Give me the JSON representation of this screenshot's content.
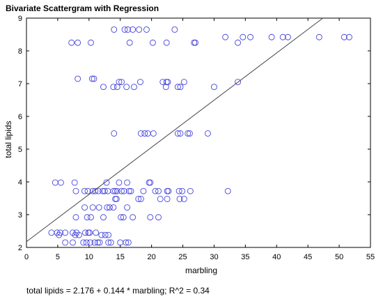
{
  "chart_data": {
    "type": "scatter",
    "title": "Bivariate Scattergram with Regression",
    "xlabel": "marbling",
    "ylabel": "total lipids",
    "xlim": [
      0,
      55
    ],
    "ylim": [
      2,
      9
    ],
    "xticks": [
      0,
      5,
      10,
      15,
      20,
      25,
      30,
      35,
      40,
      45,
      50,
      55
    ],
    "yticks": [
      2,
      3,
      4,
      5,
      6,
      7,
      8,
      9
    ],
    "grid": false,
    "point_color": "#4444dd",
    "line_color": "#444444",
    "regression": {
      "intercept": 2.176,
      "slope": 0.144
    },
    "equation": "total lipids = 2.176 + 0.144 * marbling; R^2 = 0.34",
    "points": [
      [
        14,
        8.65
      ],
      [
        15.7,
        8.65
      ],
      [
        16.2,
        8.65
      ],
      [
        17,
        8.65
      ],
      [
        18,
        8.65
      ],
      [
        19.2,
        8.65
      ],
      [
        23.7,
        8.65
      ],
      [
        7.2,
        8.25
      ],
      [
        8.2,
        8.25
      ],
      [
        10.3,
        8.25
      ],
      [
        16.5,
        8.25
      ],
      [
        20.2,
        8.25
      ],
      [
        22.4,
        8.25
      ],
      [
        26.8,
        8.25
      ],
      [
        27,
        8.25
      ],
      [
        33.8,
        8.25
      ],
      [
        31.8,
        8.42
      ],
      [
        34.6,
        8.42
      ],
      [
        35.8,
        8.42
      ],
      [
        39.2,
        8.42
      ],
      [
        41,
        8.42
      ],
      [
        41.8,
        8.42
      ],
      [
        46.8,
        8.42
      ],
      [
        50.8,
        8.42
      ],
      [
        51.6,
        8.42
      ],
      [
        8.2,
        7.15
      ],
      [
        10.5,
        7.15
      ],
      [
        10.8,
        7.15
      ],
      [
        14.8,
        7.05
      ],
      [
        15.2,
        7.05
      ],
      [
        18.2,
        7.05
      ],
      [
        21.8,
        7.05
      ],
      [
        22.6,
        7.05
      ],
      [
        22.4,
        7.05
      ],
      [
        25.2,
        7.05
      ],
      [
        33.8,
        7.05
      ],
      [
        12.3,
        6.9
      ],
      [
        13.9,
        6.9
      ],
      [
        14.5,
        6.9
      ],
      [
        16,
        6.9
      ],
      [
        17.2,
        6.9
      ],
      [
        24.2,
        6.9
      ],
      [
        24.6,
        6.9
      ],
      [
        22.3,
        6.9
      ],
      [
        30,
        6.9
      ],
      [
        14,
        5.48
      ],
      [
        18.3,
        5.48
      ],
      [
        18.9,
        5.48
      ],
      [
        19.4,
        5.48
      ],
      [
        20.3,
        5.48
      ],
      [
        24.2,
        5.48
      ],
      [
        24.6,
        5.48
      ],
      [
        25.8,
        5.48
      ],
      [
        26.1,
        5.48
      ],
      [
        29,
        5.48
      ],
      [
        4.6,
        3.98
      ],
      [
        5.5,
        3.98
      ],
      [
        7.7,
        3.98
      ],
      [
        12.8,
        3.98
      ],
      [
        14.8,
        3.98
      ],
      [
        16.1,
        3.98
      ],
      [
        19.6,
        3.98
      ],
      [
        19.8,
        3.98
      ],
      [
        9.3,
        3.72
      ],
      [
        9.8,
        3.72
      ],
      [
        10.6,
        3.72
      ],
      [
        11,
        3.72
      ],
      [
        11.5,
        3.72
      ],
      [
        12.2,
        3.72
      ],
      [
        13,
        3.72
      ],
      [
        13.9,
        3.72
      ],
      [
        14.5,
        3.72
      ],
      [
        15.2,
        3.72
      ],
      [
        15.6,
        3.72
      ],
      [
        16.4,
        3.72
      ],
      [
        18.7,
        3.72
      ],
      [
        20.6,
        3.72
      ],
      [
        21.1,
        3.72
      ],
      [
        22.5,
        3.72
      ],
      [
        22.7,
        3.72
      ],
      [
        24.4,
        3.72
      ],
      [
        24.9,
        3.72
      ],
      [
        26.2,
        3.72
      ],
      [
        32.2,
        3.72
      ],
      [
        7.9,
        3.72
      ],
      [
        12.5,
        3.72
      ],
      [
        14.2,
        3.72
      ],
      [
        16.7,
        3.72
      ],
      [
        14.2,
        3.48
      ],
      [
        14.4,
        3.48
      ],
      [
        17.9,
        3.48
      ],
      [
        18.3,
        3.48
      ],
      [
        21.4,
        3.48
      ],
      [
        22.5,
        3.48
      ],
      [
        24.5,
        3.48
      ],
      [
        25.2,
        3.48
      ],
      [
        9.3,
        3.22
      ],
      [
        10.6,
        3.22
      ],
      [
        11.6,
        3.22
      ],
      [
        12.9,
        3.22
      ],
      [
        13.3,
        3.22
      ],
      [
        13.9,
        3.22
      ],
      [
        16.1,
        3.22
      ],
      [
        7.9,
        2.92
      ],
      [
        9.7,
        2.92
      ],
      [
        10.3,
        2.92
      ],
      [
        12.3,
        2.92
      ],
      [
        15.1,
        2.92
      ],
      [
        15.5,
        2.92
      ],
      [
        17,
        2.92
      ],
      [
        19.8,
        2.92
      ],
      [
        21.1,
        2.92
      ],
      [
        4,
        2.45
      ],
      [
        4.9,
        2.45
      ],
      [
        5.4,
        2.45
      ],
      [
        6.2,
        2.45
      ],
      [
        7.4,
        2.45
      ],
      [
        8,
        2.45
      ],
      [
        9.4,
        2.45
      ],
      [
        9.9,
        2.45
      ],
      [
        10.1,
        2.45
      ],
      [
        11.1,
        2.45
      ],
      [
        5.2,
        2.38
      ],
      [
        7.8,
        2.38
      ],
      [
        8.4,
        2.38
      ],
      [
        12,
        2.38
      ],
      [
        12.6,
        2.38
      ],
      [
        13.1,
        2.38
      ],
      [
        6.2,
        2.15
      ],
      [
        7.4,
        2.15
      ],
      [
        9.1,
        2.15
      ],
      [
        9.6,
        2.15
      ],
      [
        10.2,
        2.15
      ],
      [
        10.9,
        2.15
      ],
      [
        11.4,
        2.15
      ],
      [
        11.7,
        2.15
      ],
      [
        13.1,
        2.15
      ],
      [
        13.5,
        2.15
      ],
      [
        15,
        2.15
      ],
      [
        15.9,
        2.15
      ],
      [
        16.3,
        2.15
      ]
    ]
  }
}
